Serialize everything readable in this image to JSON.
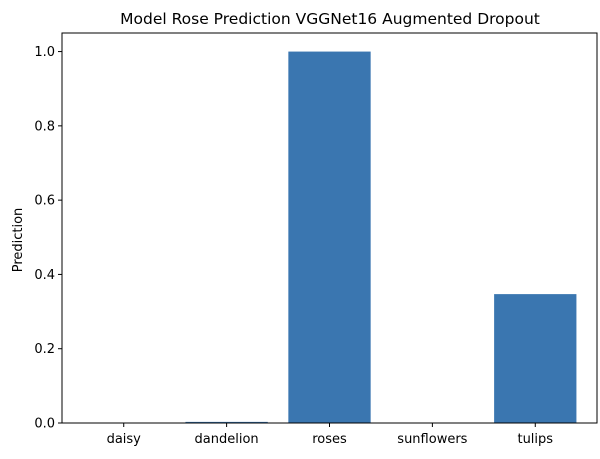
{
  "chart_data": {
    "type": "bar",
    "title": "Model Rose Prediction VGGNet16 Augmented Dropout",
    "xlabel": "",
    "ylabel": "Prediction",
    "categories": [
      "daisy",
      "dandelion",
      "roses",
      "sunflowers",
      "tulips"
    ],
    "values": [
      0.0003,
      0.003,
      1.0,
      0.0002,
      0.347
    ],
    "ylim": [
      0,
      1.05
    ],
    "yticks": [
      0.0,
      0.2,
      0.4,
      0.6,
      0.8,
      1.0
    ],
    "ytick_labels": [
      "0.0",
      "0.2",
      "0.4",
      "0.6",
      "0.8",
      "1.0"
    ],
    "grid": false,
    "bar_color": "#3a76b0"
  }
}
